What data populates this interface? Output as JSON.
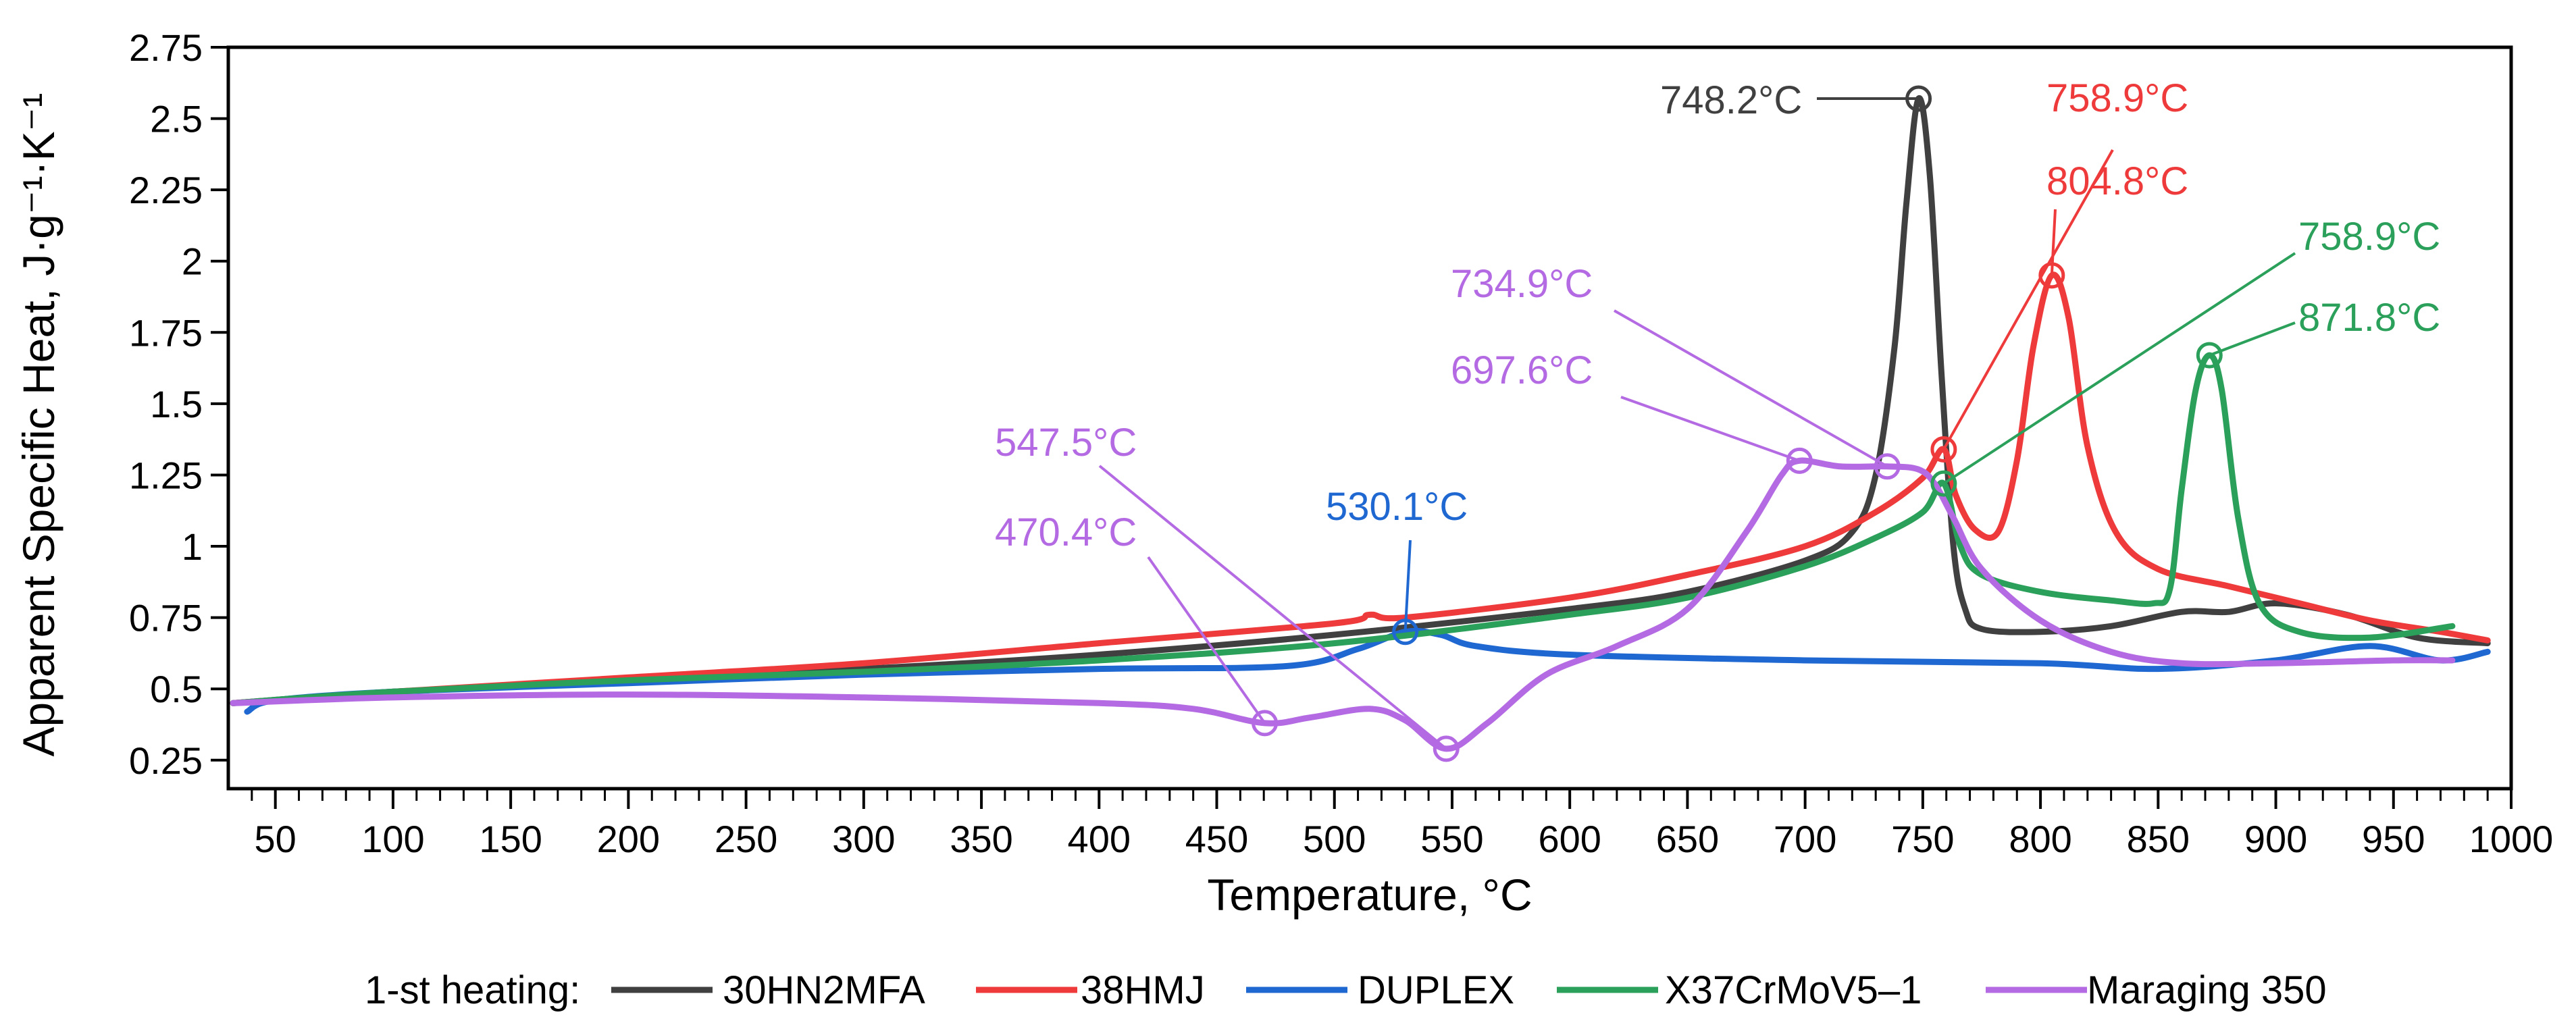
{
  "chart_data": {
    "type": "line",
    "title": "",
    "xlabel": "Temperature, °C",
    "ylabel": "Apparent Specific Heat, J·g⁻¹·K⁻¹",
    "xlim": [
      30,
      1000
    ],
    "ylim": [
      0.15,
      2.75
    ],
    "x_ticks": [
      50,
      100,
      150,
      200,
      250,
      300,
      350,
      400,
      450,
      500,
      550,
      600,
      650,
      700,
      750,
      800,
      850,
      900,
      950,
      1000
    ],
    "x_tick_labels": [
      "50",
      "100",
      "150",
      "200",
      "250",
      "300",
      "350",
      "400",
      "450",
      "500",
      "550",
      "600",
      "650",
      "700",
      "750",
      "800",
      "850",
      "900",
      "950",
      "1000"
    ],
    "y_ticks": [
      0.25,
      0.5,
      0.75,
      1,
      1.25,
      1.5,
      1.75,
      2,
      2.25,
      2.5,
      2.75
    ],
    "y_tick_labels": [
      "0.25",
      "0.5",
      "0.75",
      "1",
      "1.25",
      "1.5",
      "1.75",
      "2",
      "2.25",
      "2.5",
      "2.75"
    ],
    "legend": {
      "position": "bottom",
      "prefix": "1-st heating:",
      "entries": [
        "30HN2MFA",
        "38HMJ",
        "DUPLEX",
        "X37CrMoV5–1",
        "Maraging 350"
      ]
    },
    "series": [
      {
        "name": "30HN2MFA",
        "color": "#404040",
        "points": [
          [
            32,
            0.45
          ],
          [
            100,
            0.49
          ],
          [
            200,
            0.53
          ],
          [
            300,
            0.57
          ],
          [
            400,
            0.62
          ],
          [
            500,
            0.69
          ],
          [
            600,
            0.78
          ],
          [
            650,
            0.84
          ],
          [
            700,
            0.95
          ],
          [
            720,
            1.05
          ],
          [
            730,
            1.25
          ],
          [
            738,
            1.7
          ],
          [
            743,
            2.2
          ],
          [
            748.2,
            2.57
          ],
          [
            753,
            2.3
          ],
          [
            758,
            1.6
          ],
          [
            763,
            1.0
          ],
          [
            768,
            0.78
          ],
          [
            775,
            0.71
          ],
          [
            800,
            0.7
          ],
          [
            830,
            0.72
          ],
          [
            860,
            0.77
          ],
          [
            880,
            0.77
          ],
          [
            900,
            0.8
          ],
          [
            930,
            0.76
          ],
          [
            960,
            0.68
          ],
          [
            990,
            0.66
          ]
        ]
      },
      {
        "name": "38HMJ",
        "color": "#ee3a3a",
        "points": [
          [
            32,
            0.45
          ],
          [
            100,
            0.49
          ],
          [
            200,
            0.54
          ],
          [
            300,
            0.59
          ],
          [
            400,
            0.66
          ],
          [
            500,
            0.73
          ],
          [
            515,
            0.76
          ],
          [
            530,
            0.75
          ],
          [
            600,
            0.82
          ],
          [
            650,
            0.9
          ],
          [
            700,
            1.0
          ],
          [
            730,
            1.12
          ],
          [
            750,
            1.24
          ],
          [
            758.9,
            1.34
          ],
          [
            764,
            1.18
          ],
          [
            772,
            1.06
          ],
          [
            782,
            1.05
          ],
          [
            790,
            1.3
          ],
          [
            797,
            1.7
          ],
          [
            804.8,
            1.95
          ],
          [
            812,
            1.8
          ],
          [
            820,
            1.35
          ],
          [
            832,
            1.05
          ],
          [
            850,
            0.92
          ],
          [
            880,
            0.86
          ],
          [
            910,
            0.8
          ],
          [
            940,
            0.74
          ],
          [
            970,
            0.7
          ],
          [
            990,
            0.67
          ]
        ]
      },
      {
        "name": "DUPLEX",
        "color": "#1f68d2",
        "points": [
          [
            38,
            0.42
          ],
          [
            50,
            0.46
          ],
          [
            100,
            0.49
          ],
          [
            200,
            0.52
          ],
          [
            300,
            0.55
          ],
          [
            400,
            0.57
          ],
          [
            480,
            0.58
          ],
          [
            510,
            0.64
          ],
          [
            530.1,
            0.7
          ],
          [
            545,
            0.69
          ],
          [
            560,
            0.65
          ],
          [
            600,
            0.62
          ],
          [
            700,
            0.6
          ],
          [
            800,
            0.59
          ],
          [
            850,
            0.57
          ],
          [
            900,
            0.6
          ],
          [
            940,
            0.65
          ],
          [
            970,
            0.6
          ],
          [
            990,
            0.63
          ]
        ]
      },
      {
        "name": "X37CrMoV5–1",
        "color": "#2aa05a",
        "points": [
          [
            32,
            0.45
          ],
          [
            100,
            0.49
          ],
          [
            200,
            0.53
          ],
          [
            300,
            0.56
          ],
          [
            400,
            0.6
          ],
          [
            500,
            0.66
          ],
          [
            600,
            0.76
          ],
          [
            650,
            0.82
          ],
          [
            700,
            0.93
          ],
          [
            730,
            1.03
          ],
          [
            750,
            1.12
          ],
          [
            758.9,
            1.22
          ],
          [
            766,
            1.0
          ],
          [
            775,
            0.9
          ],
          [
            800,
            0.84
          ],
          [
            830,
            0.81
          ],
          [
            848,
            0.8
          ],
          [
            855,
            0.85
          ],
          [
            860,
            1.2
          ],
          [
            866,
            1.55
          ],
          [
            871.8,
            1.67
          ],
          [
            877,
            1.55
          ],
          [
            884,
            1.1
          ],
          [
            893,
            0.8
          ],
          [
            910,
            0.7
          ],
          [
            940,
            0.68
          ],
          [
            975,
            0.72
          ]
        ]
      },
      {
        "name": "Maraging 350",
        "color": "#b36ae2",
        "points": [
          [
            32,
            0.45
          ],
          [
            100,
            0.47
          ],
          [
            200,
            0.48
          ],
          [
            300,
            0.47
          ],
          [
            400,
            0.45
          ],
          [
            440,
            0.43
          ],
          [
            470.4,
            0.38
          ],
          [
            490,
            0.4
          ],
          [
            515,
            0.43
          ],
          [
            530,
            0.39
          ],
          [
            547.5,
            0.29
          ],
          [
            565,
            0.38
          ],
          [
            590,
            0.55
          ],
          [
            620,
            0.65
          ],
          [
            650,
            0.78
          ],
          [
            675,
            1.05
          ],
          [
            690,
            1.25
          ],
          [
            697.6,
            1.3
          ],
          [
            715,
            1.28
          ],
          [
            734.9,
            1.28
          ],
          [
            748,
            1.27
          ],
          [
            755,
            1.22
          ],
          [
            763,
            1.1
          ],
          [
            775,
            0.92
          ],
          [
            800,
            0.74
          ],
          [
            830,
            0.63
          ],
          [
            860,
            0.59
          ],
          [
            900,
            0.59
          ],
          [
            950,
            0.6
          ],
          [
            975,
            0.6
          ]
        ]
      }
    ],
    "annotations": [
      {
        "label": "748.2°C",
        "series": "30HN2MFA",
        "x": 748.2,
        "y": 2.57,
        "color": "#404040"
      },
      {
        "label": "758.9°C",
        "series": "38HMJ",
        "x": 758.9,
        "y": 1.34,
        "color": "#ee3a3a"
      },
      {
        "label": "804.8°C",
        "series": "38HMJ",
        "x": 804.8,
        "y": 1.95,
        "color": "#ee3a3a"
      },
      {
        "label": "758.9°C",
        "series": "X37CrMoV5–1",
        "x": 758.9,
        "y": 1.22,
        "color": "#2aa05a"
      },
      {
        "label": "871.8°C",
        "series": "X37CrMoV5–1",
        "x": 871.8,
        "y": 1.67,
        "color": "#2aa05a"
      },
      {
        "label": "734.9°C",
        "series": "Maraging 350",
        "x": 734.9,
        "y": 1.28,
        "color": "#b36ae2"
      },
      {
        "label": "697.6°C",
        "series": "Maraging 350",
        "x": 697.6,
        "y": 1.3,
        "color": "#b36ae2"
      },
      {
        "label": "547.5°C",
        "series": "Maraging 350",
        "x": 547.5,
        "y": 0.29,
        "color": "#b36ae2"
      },
      {
        "label": "470.4°C",
        "series": "Maraging 350",
        "x": 470.4,
        "y": 0.38,
        "color": "#b36ae2"
      },
      {
        "label": "530.1°C",
        "series": "DUPLEX",
        "x": 530.1,
        "y": 0.7,
        "color": "#1f68d2"
      }
    ]
  }
}
